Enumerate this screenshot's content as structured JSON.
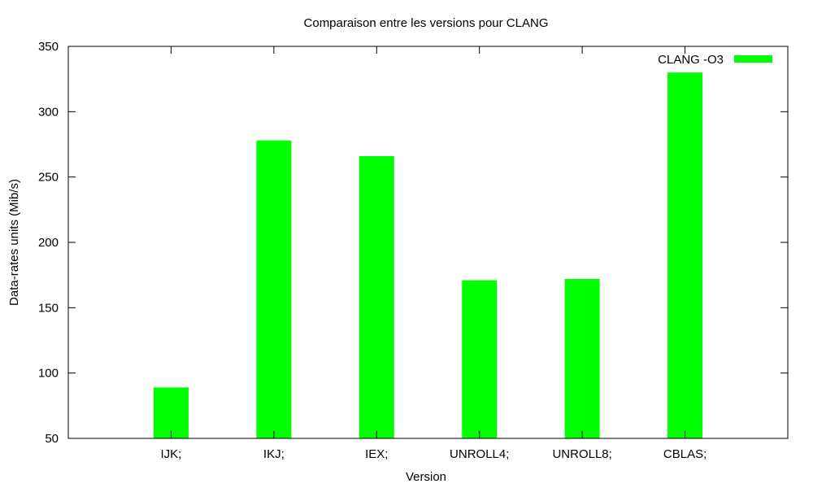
{
  "chart_data": {
    "type": "bar",
    "title": "Comparaison entre les versions pour CLANG",
    "xlabel": "Version",
    "ylabel": "Data-rates units (Mib/s)",
    "categories": [
      "IJK;",
      "IKJ;",
      "IEX;",
      "UNROLL4;",
      "UNROLL8;",
      "CBLAS;"
    ],
    "series": [
      {
        "name": "CLANG -O3",
        "values": [
          89,
          278,
          266,
          171,
          172,
          330
        ],
        "color": "#00ff00"
      }
    ],
    "ylim": [
      50,
      350
    ],
    "yticks": [
      50,
      100,
      150,
      200,
      250,
      300,
      350
    ],
    "xlim": [
      -0.5,
      6.5
    ],
    "grid": false,
    "legend_position": "top-right"
  }
}
